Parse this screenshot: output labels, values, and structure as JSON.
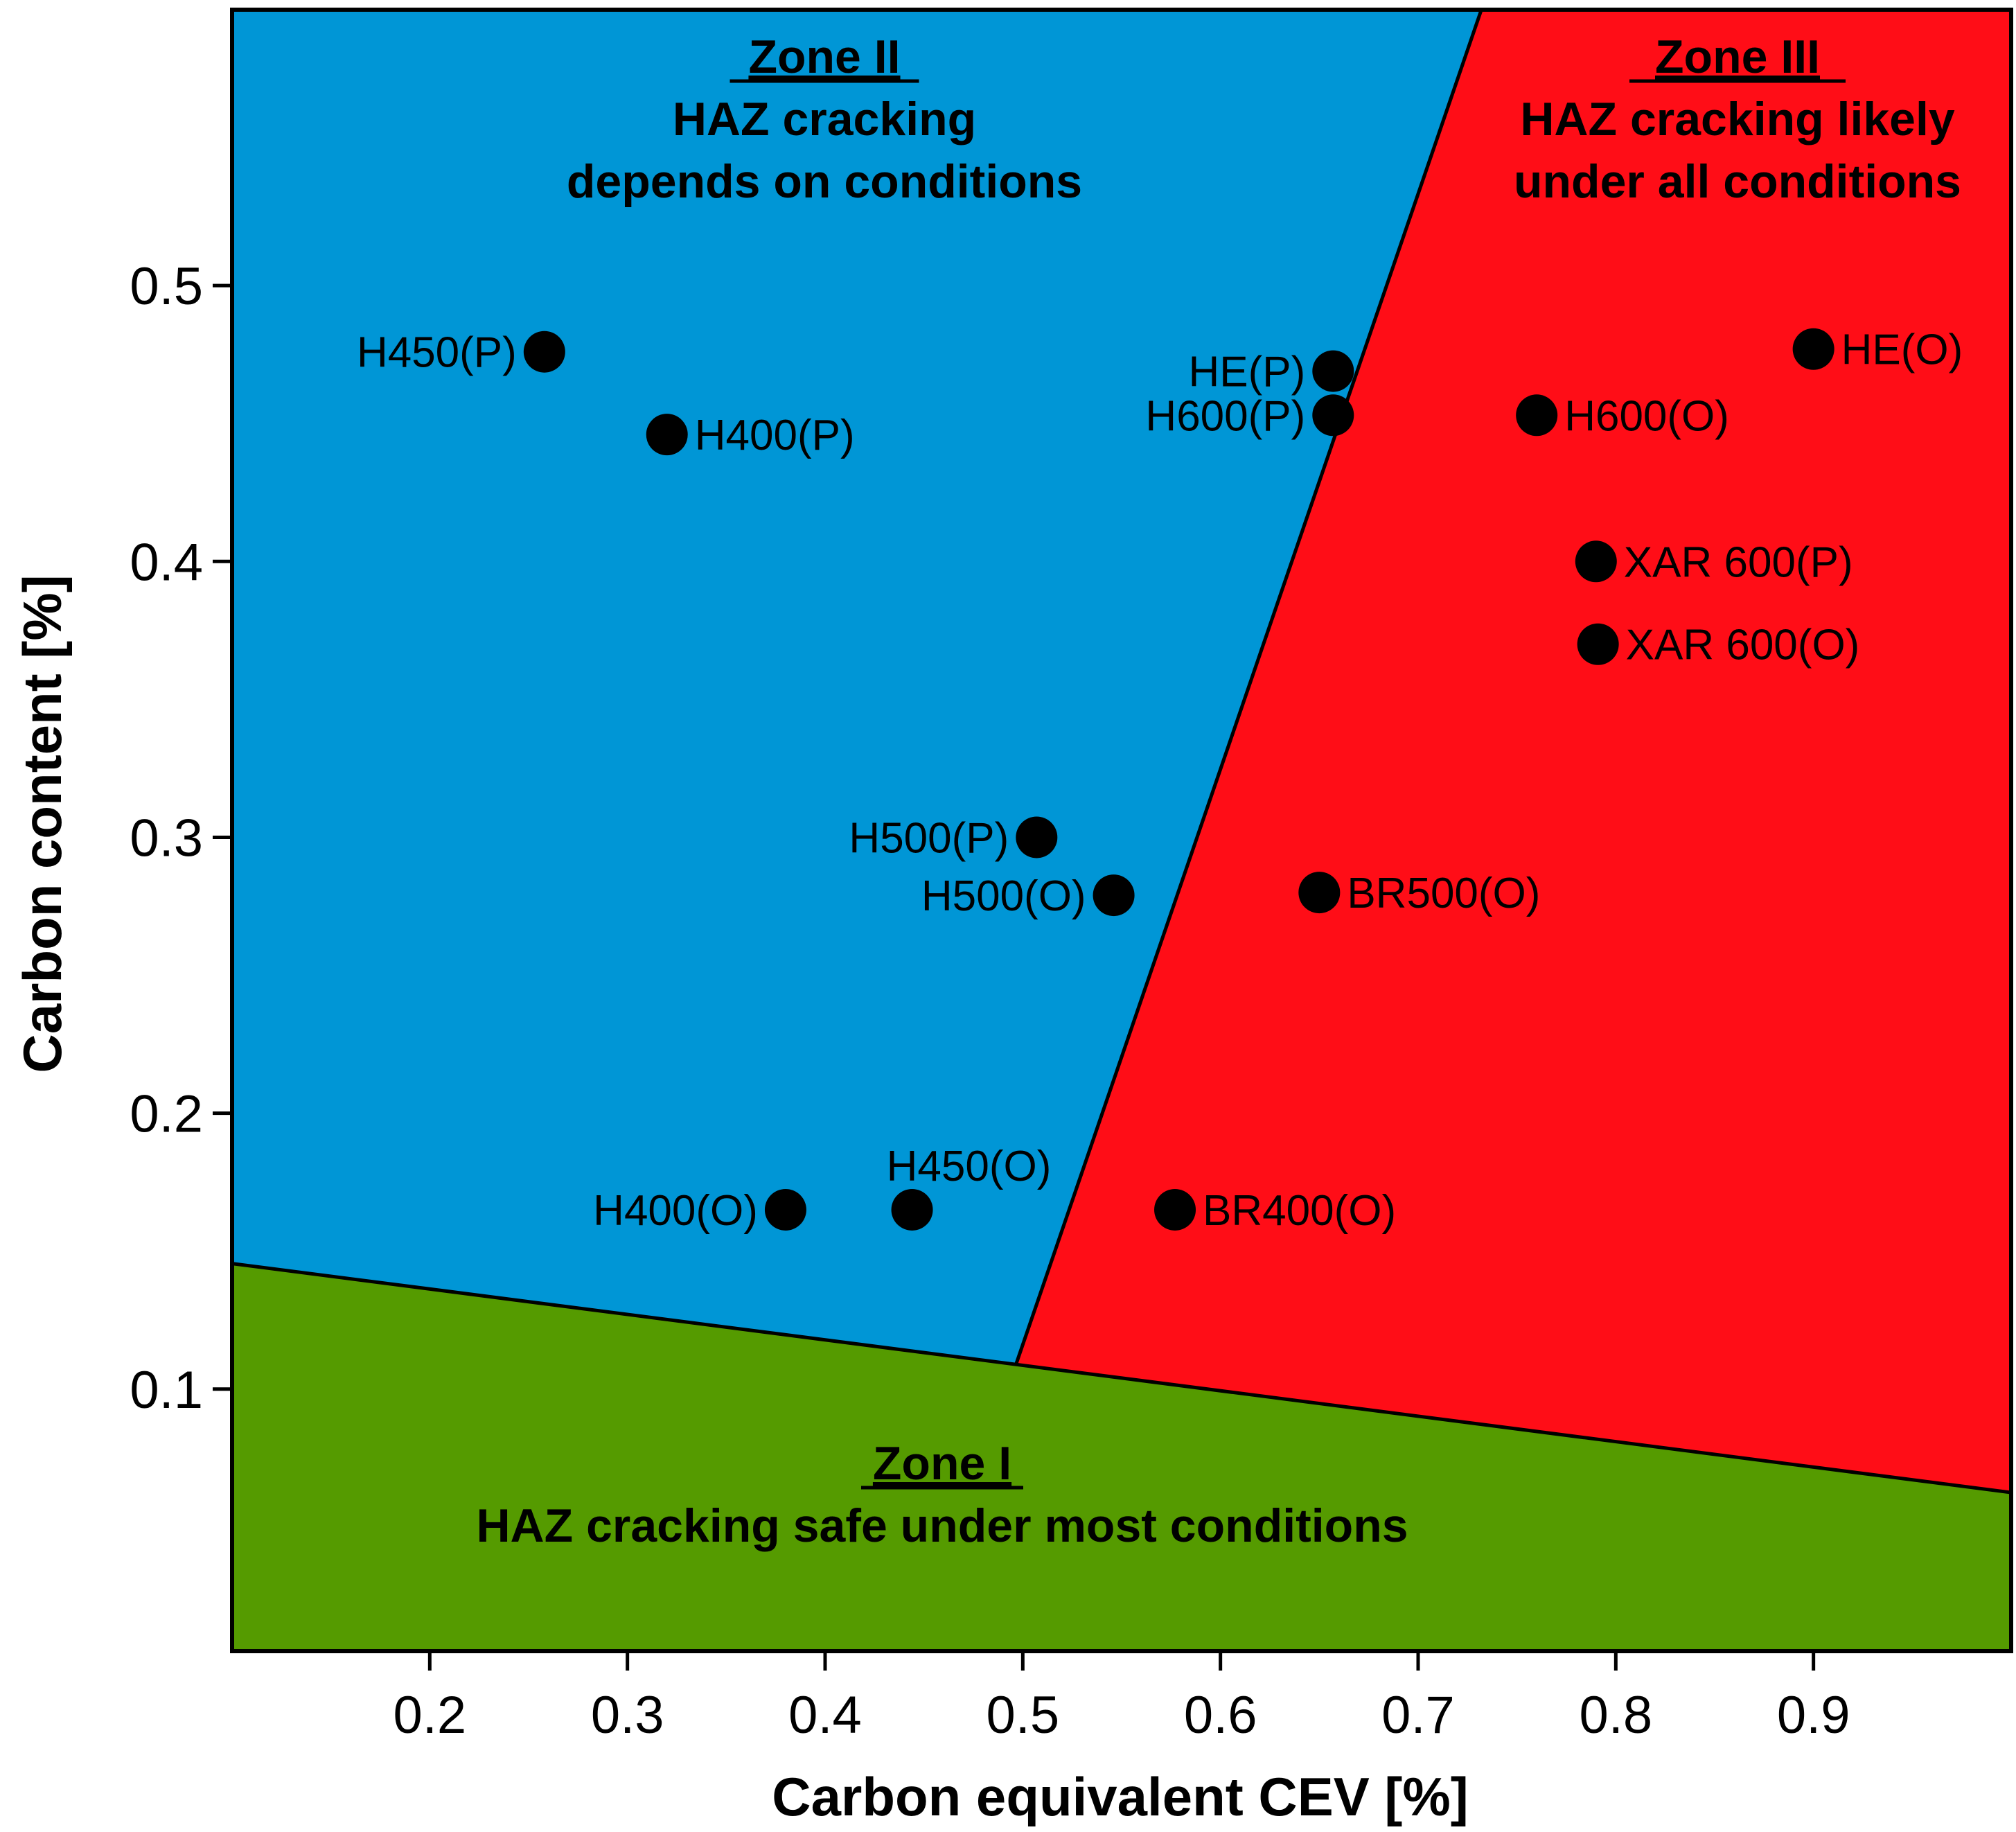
{
  "chart_data": {
    "type": "scatter",
    "title": "",
    "xlabel": "Carbon equivalent CEV [%]",
    "ylabel": "Carbon content [%]",
    "xlim": [
      0.1,
      1.0
    ],
    "ylim": [
      0.005,
      0.6
    ],
    "xticks": [
      0.2,
      0.3,
      0.4,
      0.5,
      0.6,
      0.7,
      0.8,
      0.9
    ],
    "xtick_labels": [
      "0.2",
      "0.3",
      "0.4",
      "0.5",
      "0.6",
      "0.7",
      "0.8",
      "0.9"
    ],
    "yticks": [
      0.1,
      0.2,
      0.3,
      0.4,
      0.5
    ],
    "ytick_labels": [
      "0.1",
      "0.2",
      "0.3",
      "0.4",
      "0.5"
    ],
    "grid": false,
    "colors": {
      "zone1": "#559B00",
      "zone2": "#0096D6",
      "zone3": "#FF0D17",
      "points": "#000000",
      "boundary": "#000000"
    },
    "zones": [
      {
        "id": "zone1",
        "title": "Zone I",
        "description": [
          "HAZ cracking safe under most conditions"
        ],
        "polygon": [
          [
            0.1,
            0.005
          ],
          [
            1.0,
            0.005
          ],
          [
            1.0,
            0.0625
          ],
          [
            0.1,
            0.1455
          ]
        ]
      },
      {
        "id": "zone2",
        "title": "Zone II",
        "description": [
          "HAZ cracking",
          "depends on conditions"
        ],
        "polygon": [
          [
            0.1,
            0.1455
          ],
          [
            0.4965,
            0.1088
          ],
          [
            0.732,
            0.6
          ],
          [
            0.1,
            0.6
          ]
        ]
      },
      {
        "id": "zone3",
        "title": "Zone III",
        "description": [
          "HAZ cracking likely",
          "under all conditions"
        ],
        "polygon": [
          [
            0.4965,
            0.1088
          ],
          [
            1.0,
            0.0625
          ],
          [
            1.0,
            0.6
          ],
          [
            0.732,
            0.6
          ]
        ]
      }
    ],
    "boundaries": [
      {
        "from": [
          0.1,
          0.1455
        ],
        "to": [
          1.0,
          0.0625
        ]
      },
      {
        "from": [
          0.4965,
          0.1088
        ],
        "to": [
          0.732,
          0.6
        ]
      }
    ],
    "series": [
      {
        "name": "materials",
        "points": [
          {
            "label": "H450(P)",
            "x": 0.258,
            "y": 0.476,
            "label_side": "left"
          },
          {
            "label": "H400(P)",
            "x": 0.32,
            "y": 0.446,
            "label_side": "right"
          },
          {
            "label": "HE(P)",
            "x": 0.657,
            "y": 0.469,
            "label_side": "left"
          },
          {
            "label": "H600(P)",
            "x": 0.657,
            "y": 0.453,
            "label_side": "left"
          },
          {
            "label": "HE(O)",
            "x": 0.9,
            "y": 0.477,
            "label_side": "right"
          },
          {
            "label": "H600(O)",
            "x": 0.76,
            "y": 0.453,
            "label_side": "right"
          },
          {
            "label": "XAR 600(P)",
            "x": 0.79,
            "y": 0.4,
            "label_side": "right"
          },
          {
            "label": "XAR 600(O)",
            "x": 0.791,
            "y": 0.37,
            "label_side": "right"
          },
          {
            "label": "H500(P)",
            "x": 0.507,
            "y": 0.3,
            "label_side": "left"
          },
          {
            "label": "H500(O)",
            "x": 0.546,
            "y": 0.279,
            "label_side": "left"
          },
          {
            "label": "BR500(O)",
            "x": 0.65,
            "y": 0.28,
            "label_side": "right"
          },
          {
            "label": "H400(O)",
            "x": 0.38,
            "y": 0.165,
            "label_side": "left"
          },
          {
            "label": "H450(O)",
            "x": 0.444,
            "y": 0.165,
            "label_side": "above"
          },
          {
            "label": "BR400(O)",
            "x": 0.577,
            "y": 0.165,
            "label_side": "right"
          }
        ]
      }
    ]
  }
}
